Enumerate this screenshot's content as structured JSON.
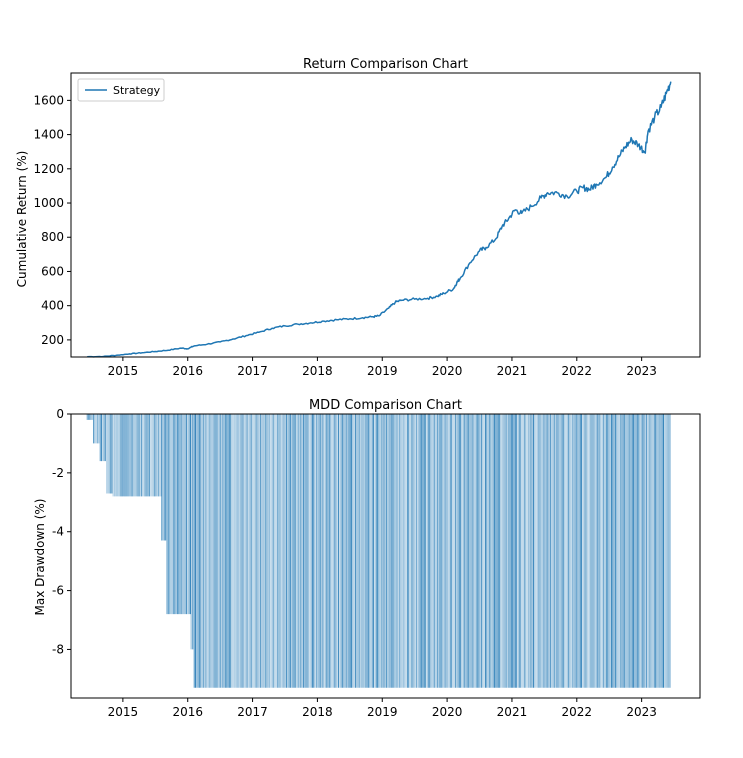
{
  "colors": {
    "series": "#1f77b4",
    "axis": "#000000",
    "background": "#ffffff"
  },
  "chart_data": [
    {
      "type": "line",
      "title": "Return Comparison Chart",
      "xlabel": "",
      "ylabel": "Cumulative Return (%)",
      "xlim": [
        2014.2,
        2023.9
      ],
      "ylim": [
        100,
        1760
      ],
      "yticks": [
        200,
        400,
        600,
        800,
        1000,
        1200,
        1400,
        1600
      ],
      "xticks": [
        2015,
        2016,
        2017,
        2018,
        2019,
        2020,
        2021,
        2022,
        2023
      ],
      "grid": false,
      "legend": "top-left",
      "series": [
        {
          "name": "Strategy",
          "x": [
            2014.45,
            2014.7,
            2014.9,
            2015.1,
            2015.3,
            2015.5,
            2015.7,
            2015.9,
            2016.0,
            2016.1,
            2016.3,
            2016.5,
            2016.7,
            2016.9,
            2017.1,
            2017.3,
            2017.5,
            2017.7,
            2017.9,
            2018.1,
            2018.3,
            2018.5,
            2018.7,
            2018.85,
            2018.95,
            2019.1,
            2019.2,
            2019.3,
            2019.5,
            2019.7,
            2019.85,
            2019.95,
            2020.1,
            2020.15,
            2020.2,
            2020.35,
            2020.5,
            2020.6,
            2020.75,
            2020.85,
            2020.95,
            2021.05,
            2021.15,
            2021.3,
            2021.45,
            2021.55,
            2021.7,
            2021.85,
            2022.0,
            2022.1,
            2022.2,
            2022.3,
            2022.45,
            2022.55,
            2022.65,
            2022.75,
            2022.85,
            2022.95,
            2023.05,
            2023.1,
            2023.2,
            2023.3,
            2023.38,
            2023.45
          ],
          "values": [
            102,
            103,
            110,
            118,
            125,
            132,
            140,
            152,
            148,
            165,
            175,
            188,
            205,
            225,
            245,
            268,
            282,
            292,
            300,
            310,
            318,
            323,
            330,
            335,
            340,
            385,
            420,
            432,
            438,
            443,
            455,
            472,
            500,
            535,
            560,
            650,
            720,
            740,
            790,
            865,
            910,
            960,
            940,
            980,
            1030,
            1060,
            1060,
            1040,
            1070,
            1090,
            1080,
            1110,
            1150,
            1210,
            1270,
            1330,
            1370,
            1340,
            1300,
            1420,
            1500,
            1560,
            1640,
            1710
          ]
        }
      ]
    },
    {
      "type": "bar",
      "title": "MDD Comparison Chart",
      "xlabel": "",
      "ylabel": "Max Drawdown (%)",
      "xlim": [
        2014.2,
        2023.9
      ],
      "ylim": [
        -9.65,
        0
      ],
      "yticks": [
        0,
        -2,
        -4,
        -6,
        -8
      ],
      "xticks": [
        2015,
        2016,
        2017,
        2018,
        2019,
        2020,
        2021,
        2022,
        2023
      ],
      "grid": false,
      "series": [
        {
          "name": "Max Drawdown",
          "steps": [
            {
              "from": 2014.45,
              "to": 2014.55,
              "value": -0.2
            },
            {
              "from": 2014.55,
              "to": 2014.65,
              "value": -1.0
            },
            {
              "from": 2014.65,
              "to": 2014.75,
              "value": -1.6
            },
            {
              "from": 2014.75,
              "to": 2014.85,
              "value": -2.7
            },
            {
              "from": 2014.85,
              "to": 2015.6,
              "value": -2.8
            },
            {
              "from": 2015.6,
              "to": 2015.68,
              "value": -4.3
            },
            {
              "from": 2015.68,
              "to": 2016.05,
              "value": -6.8
            },
            {
              "from": 2016.05,
              "to": 2016.1,
              "value": -8.0
            },
            {
              "from": 2016.1,
              "to": 2023.45,
              "value": -9.3
            }
          ]
        }
      ]
    }
  ]
}
